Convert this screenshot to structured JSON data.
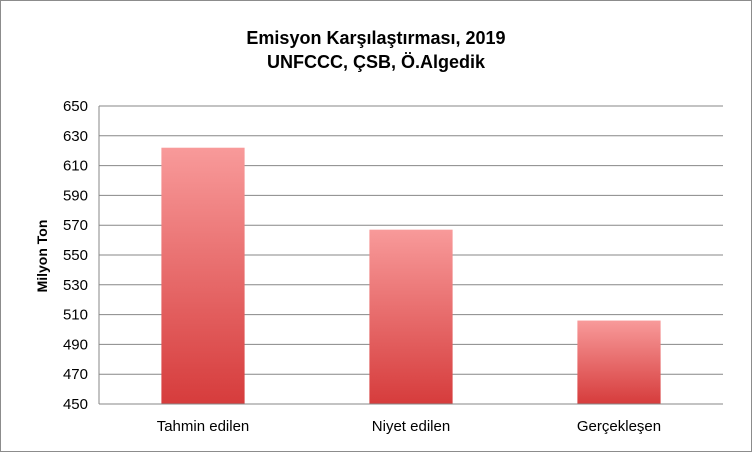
{
  "chart_data": {
    "type": "bar",
    "title": "Emisyon Karşılaştırması, 2019",
    "subtitle": "UNFCCC, ÇSB, Ö.Algedik",
    "xlabel": "",
    "ylabel": "Milyon Ton",
    "categories": [
      "Tahmin edilen",
      "Niyet edilen",
      "Gerçekleşen"
    ],
    "values": [
      622,
      567,
      506
    ],
    "ylim": [
      450,
      650
    ],
    "yticks": [
      450,
      470,
      490,
      510,
      530,
      550,
      570,
      590,
      610,
      630,
      650
    ],
    "grid": true,
    "legend": "none",
    "colors": {
      "bar_top": "#f89a9a",
      "bar_bottom": "#d63c3c",
      "gridline": "#878787",
      "axis": "#878787"
    }
  }
}
